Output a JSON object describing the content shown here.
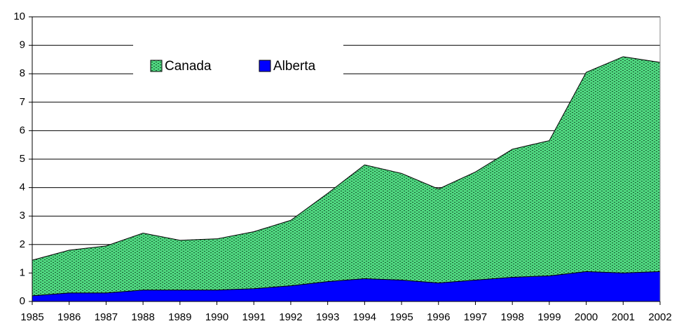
{
  "chart_data": {
    "type": "area",
    "categories": [
      "1985",
      "1986",
      "1987",
      "1988",
      "1989",
      "1990",
      "1991",
      "1992",
      "1993",
      "1994",
      "1995",
      "1996",
      "1997",
      "1998",
      "1999",
      "2000",
      "2001",
      "2002"
    ],
    "series": [
      {
        "name": "Canada",
        "color": "#4fd67f",
        "values": [
          1.45,
          1.8,
          1.95,
          2.4,
          2.15,
          2.2,
          2.45,
          2.85,
          3.8,
          4.8,
          4.5,
          3.95,
          4.55,
          5.35,
          5.65,
          8.05,
          8.6,
          8.4
        ]
      },
      {
        "name": "Alberta",
        "color": "#0000ff",
        "values": [
          0.2,
          0.3,
          0.3,
          0.4,
          0.4,
          0.4,
          0.45,
          0.55,
          0.7,
          0.8,
          0.75,
          0.65,
          0.75,
          0.85,
          0.9,
          1.05,
          1.0,
          1.05
        ]
      }
    ],
    "ylim": [
      0,
      10
    ],
    "yticks": [
      0,
      1,
      2,
      3,
      4,
      5,
      6,
      7,
      8,
      9,
      10
    ],
    "grid": true
  }
}
